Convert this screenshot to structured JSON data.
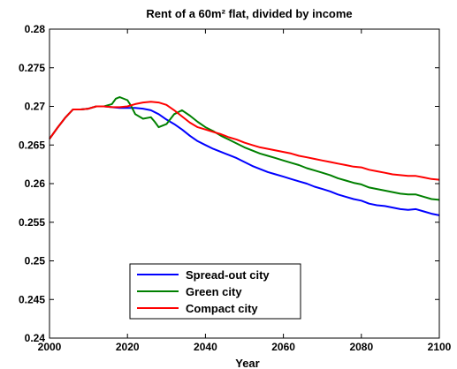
{
  "chart_data": {
    "type": "line",
    "title": "Rent of a 60m² flat, divided by income",
    "xlabel": "Year",
    "ylabel": "",
    "xlim": [
      2000,
      2100
    ],
    "ylim": [
      0.24,
      0.28
    ],
    "xticks": [
      2000,
      2020,
      2040,
      2060,
      2080,
      2100
    ],
    "xtick_labels": [
      "2000",
      "2020",
      "2040",
      "2060",
      "2080",
      "2100"
    ],
    "yticks": [
      0.24,
      0.245,
      0.25,
      0.255,
      0.26,
      0.265,
      0.27,
      0.275,
      0.28
    ],
    "ytick_labels": [
      "0.24",
      "0.245",
      "0.25",
      "0.255",
      "0.26",
      "0.265",
      "0.27",
      "0.275",
      "0.28"
    ],
    "grid": false,
    "legend_position": "bottom-center",
    "series": [
      {
        "name": "Spread-out city",
        "color": "#0000ff",
        "x": [
          2000,
          2002,
          2004,
          2006,
          2008,
          2010,
          2012,
          2014,
          2016,
          2018,
          2020,
          2022,
          2024,
          2026,
          2028,
          2030,
          2032,
          2034,
          2036,
          2038,
          2040,
          2042,
          2044,
          2046,
          2048,
          2050,
          2052,
          2054,
          2056,
          2058,
          2060,
          2062,
          2064,
          2066,
          2068,
          2070,
          2072,
          2074,
          2076,
          2078,
          2080,
          2082,
          2084,
          2086,
          2088,
          2090,
          2092,
          2094,
          2096,
          2098,
          2100
        ],
        "y": [
          0.2658,
          0.2672,
          0.2685,
          0.2696,
          0.2696,
          0.2697,
          0.27,
          0.27,
          0.2699,
          0.2698,
          0.2698,
          0.2698,
          0.2697,
          0.2695,
          0.269,
          0.2683,
          0.2677,
          0.267,
          0.2662,
          0.2655,
          0.265,
          0.2645,
          0.2641,
          0.2637,
          0.2633,
          0.2628,
          0.2623,
          0.2619,
          0.2615,
          0.2612,
          0.2609,
          0.2606,
          0.2603,
          0.26,
          0.2596,
          0.2593,
          0.259,
          0.2586,
          0.2583,
          0.258,
          0.2578,
          0.2574,
          0.2572,
          0.2571,
          0.2569,
          0.2567,
          0.2566,
          0.2567,
          0.2564,
          0.2561,
          0.2559
        ]
      },
      {
        "name": "Green city",
        "color": "#008000",
        "x": [
          2000,
          2002,
          2004,
          2006,
          2008,
          2010,
          2012,
          2014,
          2016,
          2017,
          2018,
          2020,
          2021,
          2022,
          2024,
          2026,
          2027,
          2028,
          2030,
          2032,
          2034,
          2036,
          2038,
          2040,
          2042,
          2044,
          2046,
          2048,
          2050,
          2052,
          2054,
          2056,
          2058,
          2060,
          2062,
          2064,
          2066,
          2068,
          2070,
          2072,
          2074,
          2076,
          2078,
          2080,
          2082,
          2084,
          2086,
          2088,
          2090,
          2092,
          2094,
          2096,
          2098,
          2100
        ],
        "y": [
          0.2658,
          0.2672,
          0.2685,
          0.2696,
          0.2696,
          0.2697,
          0.27,
          0.27,
          0.2703,
          0.271,
          0.2712,
          0.2708,
          0.27,
          0.269,
          0.2684,
          0.2686,
          0.268,
          0.2673,
          0.2677,
          0.269,
          0.2695,
          0.2688,
          0.268,
          0.2673,
          0.2668,
          0.2662,
          0.2657,
          0.2652,
          0.2647,
          0.2643,
          0.2639,
          0.2636,
          0.2633,
          0.263,
          0.2627,
          0.2624,
          0.262,
          0.2617,
          0.2614,
          0.2611,
          0.2607,
          0.2604,
          0.2601,
          0.2599,
          0.2595,
          0.2593,
          0.2591,
          0.2589,
          0.2587,
          0.2586,
          0.2586,
          0.2583,
          0.258,
          0.2579
        ]
      },
      {
        "name": "Compact city",
        "color": "#ff0000",
        "x": [
          2000,
          2002,
          2004,
          2006,
          2008,
          2010,
          2012,
          2014,
          2016,
          2018,
          2020,
          2022,
          2024,
          2026,
          2028,
          2030,
          2032,
          2034,
          2036,
          2038,
          2040,
          2042,
          2044,
          2046,
          2048,
          2050,
          2052,
          2054,
          2056,
          2058,
          2060,
          2062,
          2064,
          2066,
          2068,
          2070,
          2072,
          2074,
          2076,
          2078,
          2080,
          2082,
          2084,
          2086,
          2088,
          2090,
          2092,
          2094,
          2096,
          2098,
          2100
        ],
        "y": [
          0.2658,
          0.2672,
          0.2685,
          0.2696,
          0.2696,
          0.2697,
          0.27,
          0.27,
          0.2699,
          0.2699,
          0.27,
          0.2703,
          0.2705,
          0.2706,
          0.2705,
          0.2702,
          0.2695,
          0.2687,
          0.2679,
          0.2673,
          0.267,
          0.2667,
          0.2664,
          0.266,
          0.2657,
          0.2653,
          0.265,
          0.2647,
          0.2645,
          0.2643,
          0.2641,
          0.2639,
          0.2636,
          0.2634,
          0.2632,
          0.263,
          0.2628,
          0.2626,
          0.2624,
          0.2622,
          0.2621,
          0.2618,
          0.2616,
          0.2614,
          0.2612,
          0.2611,
          0.261,
          0.261,
          0.2608,
          0.2606,
          0.2605
        ]
      }
    ]
  }
}
